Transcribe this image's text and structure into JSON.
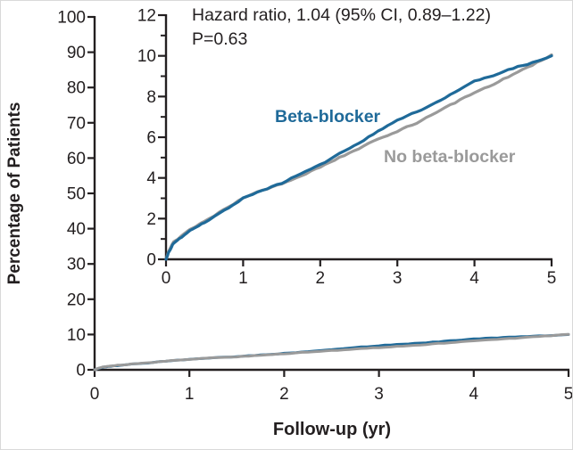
{
  "chart_data": {
    "type": "line",
    "title": "",
    "xlabel": "Follow-up (yr)",
    "ylabel": "Percentage of Patients",
    "legend_position": "inline-labels",
    "grid": false,
    "annotation": {
      "line1": "Hazard ratio, 1.04 (95% CI, 0.89–1.22)",
      "line2": "P=0.63"
    },
    "main_axis": {
      "xlim": [
        0,
        5
      ],
      "ylim": [
        0,
        100
      ],
      "xticks": [
        0,
        1,
        2,
        3,
        4,
        5
      ],
      "yticks": [
        0,
        10,
        20,
        30,
        40,
        50,
        60,
        70,
        80,
        90,
        100
      ]
    },
    "inset_axis": {
      "xlim": [
        0,
        5
      ],
      "ylim": [
        0,
        12
      ],
      "xticks": [
        0,
        1,
        2,
        3,
        4,
        5
      ],
      "yticks": [
        0,
        2,
        4,
        6,
        8,
        10,
        12
      ],
      "yticks_minor": [
        1,
        3,
        5,
        7,
        9,
        11
      ]
    },
    "x": [
      0,
      0.04,
      0.1,
      0.2,
      0.35,
      0.5,
      0.75,
      1.0,
      1.25,
      1.5,
      1.75,
      2.0,
      2.25,
      2.5,
      2.75,
      3.0,
      3.25,
      3.5,
      3.75,
      4.0,
      4.25,
      4.5,
      4.75,
      5.0
    ],
    "series": [
      {
        "name": "No beta-blocker",
        "color": "#9a9a9a",
        "values": [
          0,
          0.45,
          0.85,
          1.15,
          1.55,
          1.85,
          2.45,
          3.0,
          3.4,
          3.7,
          4.1,
          4.55,
          5.0,
          5.45,
          5.9,
          6.3,
          6.7,
          7.2,
          7.7,
          8.2,
          8.6,
          9.1,
          9.55,
          10.05
        ]
      },
      {
        "name": "Beta-blocker",
        "color": "#1f6a99",
        "values": [
          0,
          0.4,
          0.8,
          1.1,
          1.5,
          1.8,
          2.4,
          3.0,
          3.4,
          3.75,
          4.2,
          4.65,
          5.2,
          5.7,
          6.3,
          6.85,
          7.25,
          7.7,
          8.2,
          8.75,
          9.05,
          9.4,
          9.65,
          10.0
        ]
      }
    ]
  },
  "colors": {
    "axis": "#231f20",
    "beta_blocker": "#1f6a99",
    "no_beta_blocker": "#9a9a9a"
  }
}
